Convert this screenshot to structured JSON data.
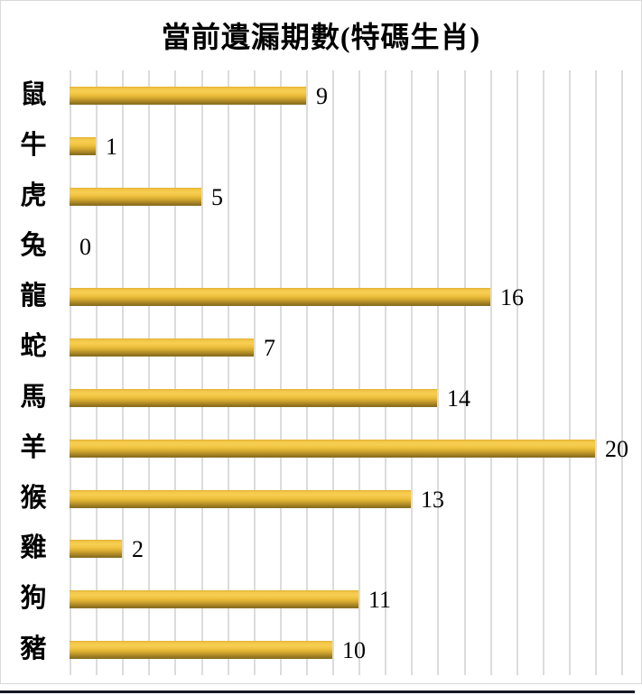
{
  "chart_data": {
    "type": "bar",
    "orientation": "horizontal",
    "title": "當前遺漏期數(特碼生肖)",
    "categories": [
      "鼠",
      "牛",
      "虎",
      "兔",
      "龍",
      "蛇",
      "馬",
      "羊",
      "猴",
      "雞",
      "狗",
      "豬"
    ],
    "values": [
      9,
      1,
      5,
      0,
      16,
      7,
      14,
      20,
      13,
      2,
      11,
      10
    ],
    "xlabel": "",
    "ylabel": "",
    "xlim": [
      0,
      21
    ],
    "grid": "vertical gridlines every 1 unit",
    "legend": "none",
    "data_labels": "value shown at end of each bar",
    "colors": {
      "bar_gradient_top": "#f4c94a",
      "bar_gradient_bottom": "#856b1d",
      "gridline": "#dcdcdc",
      "chart_border": "#d9d9d9",
      "title_text": "#000000",
      "label_text": "#000000",
      "bottom_rule": "#141824"
    }
  }
}
